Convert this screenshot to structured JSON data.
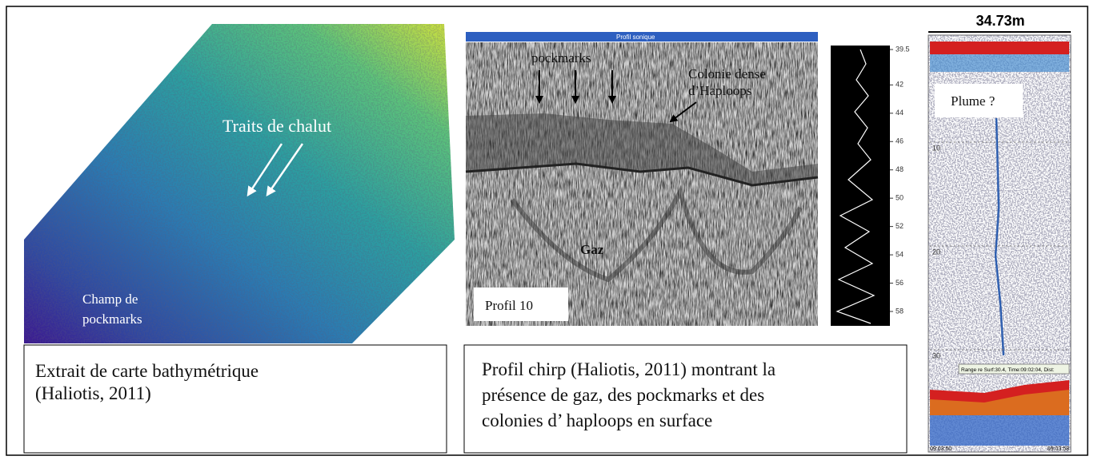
{
  "bathymetry": {
    "annotations": [
      "Traits de chalut",
      "Champ de",
      "pockmarks"
    ],
    "caption": [
      "Extrait de carte bathymétrique",
      "(Haliotis, 2011)"
    ]
  },
  "chirp": {
    "header": "Profil sonique",
    "labels": [
      "pockmarks",
      "Colonie dense",
      "d’Haploops",
      "Gaz",
      "Profil 10"
    ],
    "depth_ticks": [
      39.5,
      42,
      44,
      46,
      48,
      50,
      52,
      54,
      56,
      58
    ],
    "caption": [
      "Profil chirp (Haliotis, 2011) montrant la",
      "présence de gaz, des pockmarks et des",
      "colonies d’ haploops en surface"
    ]
  },
  "echogram": {
    "title": "34.73m",
    "label": "Plume ?",
    "depth_ticks": [
      10,
      20,
      30
    ],
    "info": "Range re Surf:30.4, Time:09:02:04, Dist:",
    "times": [
      "09:03:50",
      "09:03:58"
    ]
  }
}
